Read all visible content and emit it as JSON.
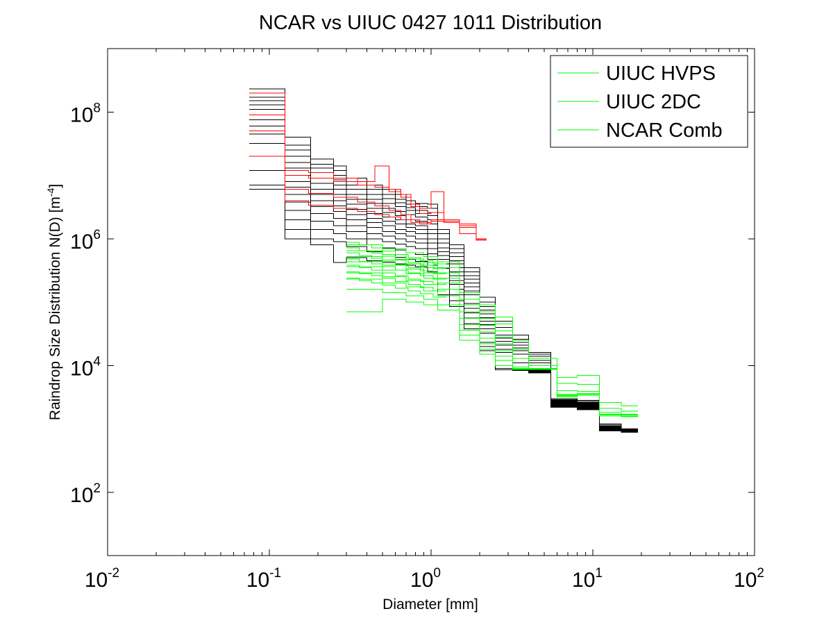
{
  "chart_data": {
    "type": "line",
    "title": "NCAR vs UIUC 0427 1011 Distribution",
    "xlabel": "Diameter [mm]",
    "ylabel_main": "Raindrop Size Distribution N(D) [m",
    "ylabel_exp": "-4",
    "ylabel_close": "]",
    "xscale": "log",
    "yscale": "log",
    "xlim": [
      0.01,
      100
    ],
    "ylim": [
      10,
      1000000000
    ],
    "grid": false,
    "legend_position": "top-right",
    "x_ticks": [
      {
        "value": 0.01,
        "base": "10",
        "exp": "-2"
      },
      {
        "value": 0.1,
        "base": "10",
        "exp": "-1"
      },
      {
        "value": 1,
        "base": "10",
        "exp": "0"
      },
      {
        "value": 10,
        "base": "10",
        "exp": "1"
      },
      {
        "value": 100,
        "base": "10",
        "exp": "2"
      }
    ],
    "y_ticks": [
      {
        "value": 100,
        "base": "10",
        "exp": "2"
      },
      {
        "value": 10000,
        "base": "10",
        "exp": "4"
      },
      {
        "value": 1000000,
        "base": "10",
        "exp": "6"
      },
      {
        "value": 100000000,
        "base": "10",
        "exp": "8"
      }
    ],
    "series": [
      {
        "name": "UIUC HVPS",
        "color": "#00ff00",
        "bins": [
          0.3,
          0.5,
          0.7,
          0.9,
          1.1,
          1.5,
          2.0,
          2.5,
          3.2,
          4.0,
          6.0,
          8.0,
          11.0,
          15.0,
          19.0
        ],
        "profiles": [
          [
            800000,
            700000,
            600000,
            520000,
            430000,
            140000,
            90000,
            58000,
            25000,
            13000,
            6500,
            7000,
            2600,
            2300
          ],
          [
            650000,
            560000,
            480000,
            420000,
            350000,
            110000,
            70000,
            45000,
            18000,
            10000,
            5200,
            5000,
            2100,
            1900
          ],
          [
            520000,
            460000,
            400000,
            350000,
            290000,
            90000,
            55000,
            35000,
            13000,
            8600,
            4000,
            3900,
            1800,
            1700
          ],
          [
            430000,
            380000,
            330000,
            290000,
            240000,
            70000,
            43000,
            28000,
            9500,
            8700,
            3400,
            3600,
            1700,
            1700
          ],
          [
            360000,
            320000,
            280000,
            240000,
            200000,
            55000,
            34000,
            22000,
            8600,
            8700,
            3300,
            3500,
            1650,
            1600
          ],
          [
            290000,
            250000,
            220000,
            190000,
            160000,
            44000,
            27000,
            17000,
            8800,
            8600,
            3200,
            3400,
            1600,
            1550
          ],
          [
            230000,
            200000,
            175000,
            150000,
            125000,
            36000,
            22000,
            14000,
            8700,
            8800,
            3300,
            3400,
            1650,
            1650
          ],
          [
            160000,
            140000,
            125000,
            110000,
            90000,
            30000,
            18000,
            12000,
            8900,
            9000,
            3500,
            3600,
            1700,
            1700
          ],
          [
            70000,
            110000,
            100000,
            90000,
            75000,
            25000,
            15000,
            10000,
            9000,
            8900,
            3400,
            3500,
            1650,
            1650
          ]
        ]
      },
      {
        "name": "UIUC 2DC",
        "color": "#00ff00",
        "bins": [
          0.3,
          0.36,
          0.43,
          0.5,
          0.6,
          0.72,
          0.86,
          1.03,
          1.24
        ],
        "profiles": [
          [
            880000,
            800000,
            720000,
            640000,
            560000,
            500000,
            450000,
            400000
          ],
          [
            720000,
            650000,
            590000,
            530000,
            470000,
            420000,
            380000,
            340000
          ],
          [
            600000,
            540000,
            490000,
            440000,
            390000,
            350000,
            310000,
            280000
          ],
          [
            480000,
            440000,
            400000,
            360000,
            320000,
            290000,
            260000,
            230000
          ],
          [
            380000,
            350000,
            320000,
            290000,
            260000,
            230000,
            210000,
            190000
          ],
          [
            300000,
            280000,
            260000,
            240000,
            210000,
            190000,
            170000,
            150000
          ],
          [
            240000,
            220000,
            200000,
            185000,
            165000,
            150000,
            135000,
            120000
          ]
        ]
      },
      {
        "name": "NCAR Comb",
        "color": "#ff0000",
        "bins": [
          0.075,
          0.125,
          0.175,
          0.25,
          0.35,
          0.45,
          0.55,
          0.65,
          0.75,
          0.85,
          1.0,
          1.2,
          1.5,
          1.9,
          2.2
        ],
        "profiles": [
          [
            200000000,
            12000000,
            11000000,
            9000000,
            8000000,
            14000000,
            6000000,
            5000000,
            3500000,
            3000000,
            5500000,
            1800000,
            1200000,
            980000
          ],
          [
            90000000,
            10000000,
            9000000,
            8000000,
            7000000,
            6500000,
            5500000,
            4500000,
            3200000,
            2500000,
            2600000,
            2000000,
            1500000,
            1000000
          ],
          [
            50000000,
            6000000,
            5200000,
            4500000,
            3800000,
            3300000,
            2800000,
            2400000,
            2000000,
            1800000,
            1900000,
            2000000,
            1600000,
            950000
          ],
          [
            20000000,
            4000000,
            3400000,
            3000000,
            2700000,
            2400000,
            2200000,
            2000000,
            1800000,
            1700000,
            2000000,
            1900000,
            1700000,
            1000000
          ]
        ]
      },
      {
        "name": "",
        "color": "#000000",
        "bins": [
          0.075,
          0.125,
          0.18,
          0.25,
          0.3,
          0.4,
          0.5,
          0.6,
          0.7,
          0.8,
          0.95,
          1.1,
          1.3,
          1.6,
          2.0,
          2.5,
          3.2,
          4.0,
          5.5,
          8.0,
          11.0,
          15.0,
          19.0
        ],
        "profiles": [
          [
            230000000,
            40000000,
            18000000,
            14000000,
            9000000,
            7000000,
            6000000,
            5000000,
            4000000,
            3600000,
            3500000,
            1400000,
            800000,
            350000,
            120000,
            50000,
            30000,
            16000,
            3000,
            2800,
            1200,
            1000
          ],
          [
            200000000,
            30000000,
            15000000,
            12000000,
            8000000,
            6000000,
            5000000,
            4200000,
            3500000,
            3200000,
            3000000,
            1200000,
            700000,
            300000,
            100000,
            45000,
            26000,
            15000,
            2900,
            2700,
            1150,
            1000
          ],
          [
            170000000,
            25000000,
            13000000,
            10000000,
            7000000,
            5000000,
            4300000,
            3700000,
            3100000,
            2800000,
            2600000,
            1000000,
            600000,
            260000,
            85000,
            40000,
            23000,
            14000,
            2800,
            2600,
            1100,
            980
          ],
          [
            150000000,
            20000000,
            11000000,
            8500000,
            6000000,
            4200000,
            3600000,
            3200000,
            2800000,
            2500000,
            2300000,
            850000,
            520000,
            230000,
            75000,
            35000,
            21000,
            12000,
            2750,
            2550,
            1080,
            970
          ],
          [
            130000000,
            16000000,
            9000000,
            7000000,
            5000000,
            3600000,
            3000000,
            2700000,
            2400000,
            2200000,
            2000000,
            720000,
            450000,
            200000,
            65000,
            30000,
            19000,
            11000,
            2700,
            2500,
            1060,
            960
          ],
          [
            110000000,
            13000000,
            7500000,
            6000000,
            4200000,
            3000000,
            2600000,
            2300000,
            2000000,
            1900000,
            1700000,
            620000,
            400000,
            175000,
            57000,
            27000,
            17000,
            10000,
            2650,
            2450,
            1040,
            950
          ],
          [
            90000000,
            10000000,
            6000000,
            5000000,
            3500000,
            2500000,
            2200000,
            2000000,
            1700000,
            1600000,
            1400000,
            540000,
            350000,
            150000,
            50000,
            24000,
            15000,
            9000,
            2600,
            2400,
            1020,
            940
          ],
          [
            75000000,
            8000000,
            5000000,
            4000000,
            2900000,
            2100000,
            1900000,
            1700000,
            1500000,
            1400000,
            1200000,
            470000,
            300000,
            130000,
            44000,
            21000,
            13000,
            8600,
            2550,
            2350,
            1000,
            930
          ],
          [
            60000000,
            6500000,
            4000000,
            3300000,
            2400000,
            1800000,
            1600000,
            1400000,
            1300000,
            1200000,
            1000000,
            400000,
            260000,
            110000,
            38000,
            18000,
            11000,
            8400,
            2500,
            2300,
            990,
            920
          ],
          [
            45000000,
            5000000,
            3200000,
            2700000,
            2000000,
            1500000,
            1300000,
            1200000,
            1100000,
            1000000,
            850000,
            340000,
            220000,
            95000,
            32000,
            16000,
            9500,
            8200,
            2450,
            2250,
            980,
            910
          ],
          [
            32000000,
            3800000,
            2500000,
            2100000,
            1600000,
            1200000,
            1100000,
            1000000,
            900000,
            850000,
            700000,
            290000,
            190000,
            80000,
            27000,
            14000,
            8800,
            8000,
            2400,
            2200,
            970,
            900
          ],
          [
            20000000,
            2800000,
            1900000,
            1600000,
            1300000,
            1000000,
            900000,
            820000,
            750000,
            700000,
            580000,
            240000,
            160000,
            68000,
            23000,
            12000,
            8600,
            7900,
            2350,
            2150,
            960,
            895
          ],
          [
            12000000,
            2000000,
            1400000,
            1200000,
            1000000,
            800000,
            720000,
            660000,
            600000,
            560000,
            470000,
            200000,
            130000,
            56000,
            20000,
            10000,
            8500,
            7800,
            2300,
            2100,
            950,
            890
          ],
          [
            7000000,
            1400000,
            1000000,
            900000,
            750000,
            620000,
            560000,
            510000,
            470000,
            440000,
            380000,
            160000,
            105000,
            46000,
            17000,
            9000,
            8400,
            7700,
            2250,
            2050,
            940,
            885
          ],
          [
            6000000,
            1000000,
            800000,
            420000,
            500000,
            450000,
            420000,
            400000,
            380000,
            360000,
            300000,
            130000,
            85000,
            38000,
            15000,
            8500,
            8300,
            7600,
            2200,
            2000,
            930,
            880
          ]
        ]
      }
    ]
  }
}
